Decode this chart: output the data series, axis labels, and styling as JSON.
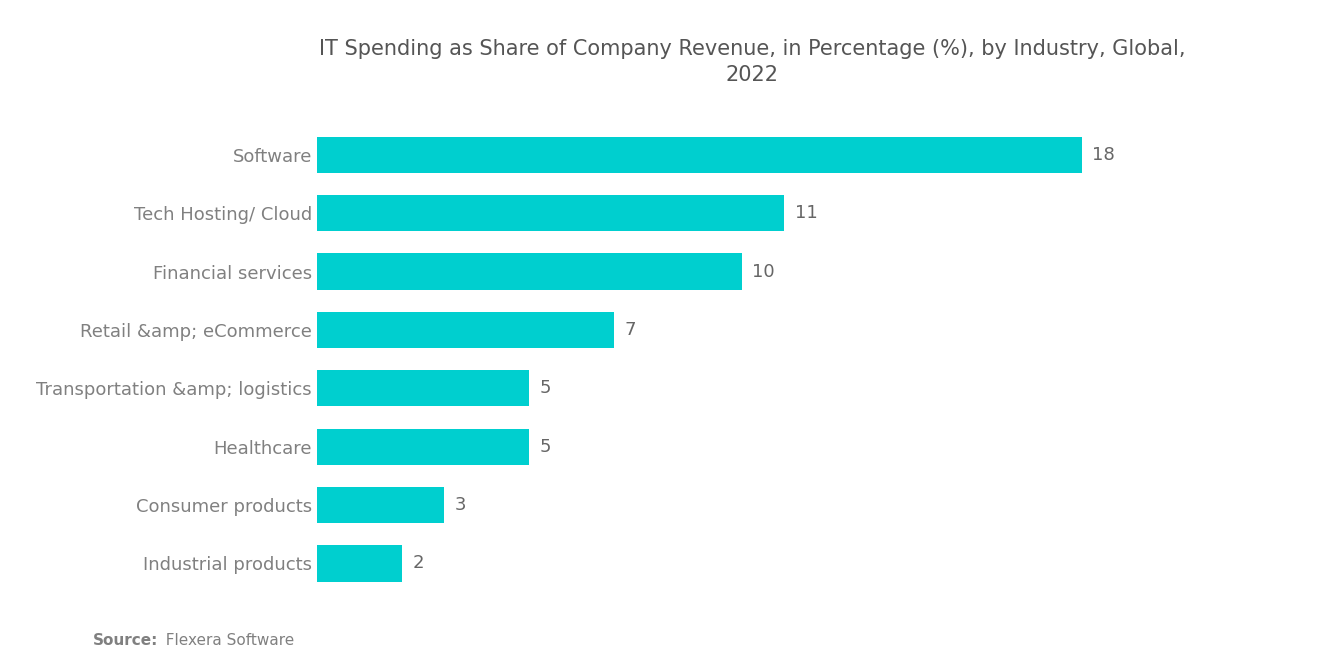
{
  "title": "IT Spending as Share of Company Revenue, in Percentage (%), by Industry, Global,\n2022",
  "categories": [
    "Industrial products",
    "Consumer products",
    "Healthcare",
    "Transportation &amp; logistics",
    "Retail &amp; eCommerce",
    "Financial services",
    "Tech Hosting/ Cloud",
    "Software"
  ],
  "values": [
    2,
    3,
    5,
    5,
    7,
    10,
    11,
    18
  ],
  "bar_color": "#00CFCF",
  "label_color": "#808080",
  "value_color": "#666666",
  "title_color": "#555555",
  "background_color": "#ffffff",
  "source_bold": "Source:",
  "source_normal": "  Flexera Software",
  "xlim": [
    0,
    20.5
  ],
  "bar_height": 0.62,
  "title_fontsize": 15,
  "label_fontsize": 13,
  "value_fontsize": 13,
  "source_fontsize": 11
}
